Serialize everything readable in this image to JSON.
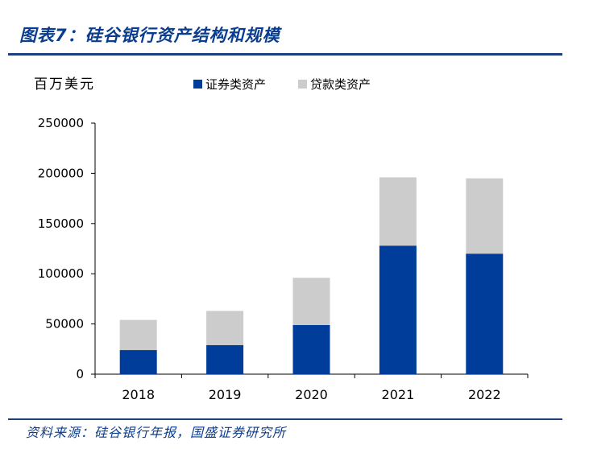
{
  "figure": {
    "title": "图表7：硅谷银行资产结构和规模",
    "unit_label": "百万美元",
    "source": "资料来源：硅谷银行年报，国盛证券研究所"
  },
  "colors": {
    "securities": "#003c99",
    "loans": "#cccccc",
    "rule": "#1f3f7a",
    "title": "#0a3d8f"
  },
  "chart_data": {
    "type": "bar",
    "stacked": true,
    "categories": [
      "2018",
      "2019",
      "2020",
      "2021",
      "2022"
    ],
    "series": [
      {
        "name": "证券类资产",
        "values": [
          24000,
          29000,
          49000,
          128000,
          120000
        ]
      },
      {
        "name": "贷款类资产",
        "values": [
          30000,
          34000,
          47000,
          68000,
          75000
        ]
      }
    ],
    "ylim": [
      0,
      250000
    ],
    "yticks": [
      0,
      50000,
      100000,
      150000,
      200000,
      250000
    ],
    "ylabel": "百万美元",
    "legend_position": "top",
    "grid": false
  }
}
